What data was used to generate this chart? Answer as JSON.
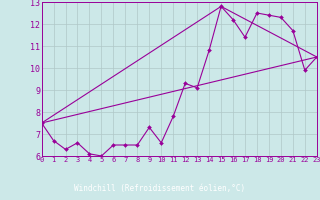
{
  "xlabel": "Windchill (Refroidissement éolien,°C)",
  "bg_color": "#cce8e8",
  "xlabel_bg_color": "#7700aa",
  "grid_color": "#b0c8c8",
  "line_color": "#990099",
  "xlabel_text_color": "#ffffff",
  "xlim": [
    0,
    23
  ],
  "ylim": [
    6,
    13
  ],
  "xticks": [
    0,
    1,
    2,
    3,
    4,
    5,
    6,
    7,
    8,
    9,
    10,
    11,
    12,
    13,
    14,
    15,
    16,
    17,
    18,
    19,
    20,
    21,
    22,
    23
  ],
  "yticks": [
    6,
    7,
    8,
    9,
    10,
    11,
    12,
    13
  ],
  "series1_x": [
    0,
    1,
    2,
    3,
    4,
    5,
    6,
    7,
    8,
    9,
    10,
    11,
    12,
    13,
    14,
    15,
    16,
    17,
    18,
    19,
    20,
    21,
    22,
    23
  ],
  "series1_y": [
    7.5,
    6.7,
    6.3,
    6.6,
    6.1,
    6.0,
    6.5,
    6.5,
    6.5,
    7.3,
    6.6,
    7.8,
    9.3,
    9.1,
    10.8,
    12.8,
    12.2,
    11.4,
    12.5,
    12.4,
    12.3,
    11.7,
    9.9,
    10.5
  ],
  "series2_x": [
    0,
    23
  ],
  "series2_y": [
    7.5,
    10.5
  ],
  "series3_x": [
    0,
    15,
    23
  ],
  "series3_y": [
    7.5,
    12.8,
    10.5
  ]
}
